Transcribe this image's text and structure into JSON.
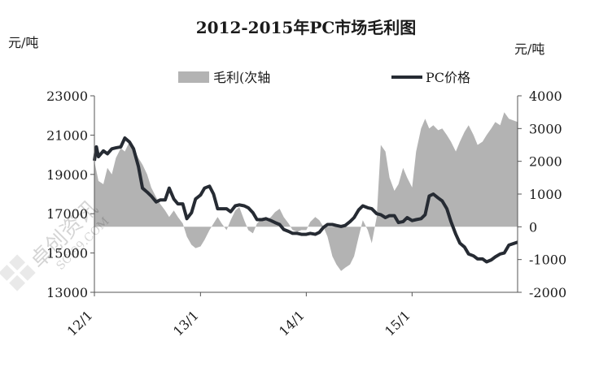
{
  "chart_data": {
    "type": "line",
    "title": "2012-2015年PC市场毛利图",
    "y_left_unit": "元/吨",
    "y_right_unit": "元/吨",
    "y_left_range": [
      13000,
      23000
    ],
    "y_right_range": [
      -2000,
      4000
    ],
    "y_left_ticks": [
      "23000",
      "21000",
      "19000",
      "17000",
      "15000",
      "13000"
    ],
    "y_right_ticks": [
      "4000",
      "3000",
      "2000",
      "1000",
      "0",
      "-1000",
      "-2000"
    ],
    "x_range": [
      "2012-01-01",
      "2015-12-31"
    ],
    "x_tick_labels": [
      {
        "date": "2012-01-01",
        "label": "12/1"
      },
      {
        "date": "2013-01-01",
        "label": "13/1"
      },
      {
        "date": "2014-01-01",
        "label": "14/1"
      },
      {
        "date": "2015-01-01",
        "label": "15/1"
      }
    ],
    "legend": {
      "position": "top",
      "items": [
        {
          "label": "毛利(次轴",
          "kind": "area",
          "color": "#b3b3b3"
        },
        {
          "label": "PC价格",
          "kind": "line",
          "color": "#262b33"
        }
      ]
    },
    "grid": false,
    "series": [
      {
        "name": "毛利(次轴",
        "axis": "right",
        "kind": "area",
        "color": "#b3b3b3",
        "points": [
          [
            "2012-01-01",
            2000
          ],
          [
            "2012-01-15",
            1400
          ],
          [
            "2012-02-01",
            1300
          ],
          [
            "2012-02-15",
            1800
          ],
          [
            "2012-03-01",
            1600
          ],
          [
            "2012-03-15",
            2100
          ],
          [
            "2012-04-01",
            2400
          ],
          [
            "2012-04-15",
            2300
          ],
          [
            "2012-05-01",
            2600
          ],
          [
            "2012-05-15",
            2400
          ],
          [
            "2012-06-01",
            2100
          ],
          [
            "2012-06-15",
            1900
          ],
          [
            "2012-07-01",
            1600
          ],
          [
            "2012-07-15",
            1200
          ],
          [
            "2012-08-01",
            900
          ],
          [
            "2012-08-15",
            700
          ],
          [
            "2012-09-01",
            500
          ],
          [
            "2012-09-15",
            300
          ],
          [
            "2012-10-01",
            500
          ],
          [
            "2012-10-15",
            300
          ],
          [
            "2012-11-01",
            100
          ],
          [
            "2012-11-15",
            -300
          ],
          [
            "2012-12-01",
            -550
          ],
          [
            "2012-12-15",
            -650
          ],
          [
            "2013-01-01",
            -600
          ],
          [
            "2013-01-15",
            -400
          ],
          [
            "2013-02-01",
            -100
          ],
          [
            "2013-02-15",
            100
          ],
          [
            "2013-03-01",
            300
          ],
          [
            "2013-03-15",
            100
          ],
          [
            "2013-04-01",
            -100
          ],
          [
            "2013-04-15",
            200
          ],
          [
            "2013-05-01",
            500
          ],
          [
            "2013-05-15",
            600
          ],
          [
            "2013-06-01",
            200
          ],
          [
            "2013-06-15",
            -100
          ],
          [
            "2013-07-01",
            -200
          ],
          [
            "2013-07-15",
            100
          ],
          [
            "2013-08-01",
            250
          ],
          [
            "2013-08-15",
            200
          ],
          [
            "2013-09-01",
            300
          ],
          [
            "2013-09-15",
            450
          ],
          [
            "2013-10-01",
            550
          ],
          [
            "2013-10-15",
            300
          ],
          [
            "2013-11-01",
            100
          ],
          [
            "2013-11-15",
            -100
          ],
          [
            "2013-12-01",
            -150
          ],
          [
            "2013-12-15",
            -100
          ],
          [
            "2014-01-01",
            -100
          ],
          [
            "2014-01-15",
            150
          ],
          [
            "2014-02-01",
            300
          ],
          [
            "2014-02-15",
            200
          ],
          [
            "2014-03-01",
            0
          ],
          [
            "2014-03-15",
            -300
          ],
          [
            "2014-04-01",
            -900
          ],
          [
            "2014-04-15",
            -1150
          ],
          [
            "2014-05-01",
            -1350
          ],
          [
            "2014-05-15",
            -1250
          ],
          [
            "2014-06-01",
            -1150
          ],
          [
            "2014-06-15",
            -900
          ],
          [
            "2014-07-01",
            -300
          ],
          [
            "2014-07-15",
            200
          ],
          [
            "2014-08-01",
            -100
          ],
          [
            "2014-08-15",
            -500
          ],
          [
            "2014-09-01",
            300
          ],
          [
            "2014-09-15",
            2500
          ],
          [
            "2014-10-01",
            2300
          ],
          [
            "2014-10-15",
            1500
          ],
          [
            "2014-11-01",
            1100
          ],
          [
            "2014-11-15",
            1300
          ],
          [
            "2014-12-01",
            1800
          ],
          [
            "2014-12-15",
            1500
          ],
          [
            "2015-01-01",
            1200
          ],
          [
            "2015-01-15",
            2300
          ],
          [
            "2015-02-01",
            3000
          ],
          [
            "2015-02-15",
            3300
          ],
          [
            "2015-03-01",
            3000
          ],
          [
            "2015-03-15",
            3100
          ],
          [
            "2015-04-01",
            2950
          ],
          [
            "2015-04-15",
            3000
          ],
          [
            "2015-05-01",
            2800
          ],
          [
            "2015-05-15",
            2600
          ],
          [
            "2015-06-01",
            2300
          ],
          [
            "2015-06-15",
            2600
          ],
          [
            "2015-07-01",
            2900
          ],
          [
            "2015-07-15",
            3100
          ],
          [
            "2015-08-01",
            2800
          ],
          [
            "2015-08-15",
            2500
          ],
          [
            "2015-09-01",
            2600
          ],
          [
            "2015-09-15",
            2800
          ],
          [
            "2015-10-01",
            3000
          ],
          [
            "2015-10-15",
            3200
          ],
          [
            "2015-11-01",
            3100
          ],
          [
            "2015-11-15",
            3500
          ],
          [
            "2015-12-01",
            3300
          ],
          [
            "2015-12-31",
            3200
          ]
        ]
      },
      {
        "name": "PC价格",
        "axis": "left",
        "kind": "line",
        "color": "#262b33",
        "points": [
          [
            "2012-01-01",
            19700
          ],
          [
            "2012-01-08",
            20400
          ],
          [
            "2012-01-15",
            19900
          ],
          [
            "2012-02-01",
            20200
          ],
          [
            "2012-02-15",
            20050
          ],
          [
            "2012-03-01",
            20300
          ],
          [
            "2012-03-15",
            20350
          ],
          [
            "2012-04-01",
            20400
          ],
          [
            "2012-04-15",
            20850
          ],
          [
            "2012-05-01",
            20650
          ],
          [
            "2012-05-15",
            20300
          ],
          [
            "2012-06-01",
            19400
          ],
          [
            "2012-06-15",
            18300
          ],
          [
            "2012-07-01",
            18100
          ],
          [
            "2012-07-15",
            17900
          ],
          [
            "2012-08-01",
            17600
          ],
          [
            "2012-08-15",
            17700
          ],
          [
            "2012-09-01",
            17700
          ],
          [
            "2012-09-15",
            18300
          ],
          [
            "2012-10-01",
            17750
          ],
          [
            "2012-10-15",
            17500
          ],
          [
            "2012-11-01",
            17500
          ],
          [
            "2012-11-15",
            16750
          ],
          [
            "2012-12-01",
            17050
          ],
          [
            "2012-12-15",
            17750
          ],
          [
            "2013-01-01",
            17950
          ],
          [
            "2013-01-15",
            18300
          ],
          [
            "2013-02-01",
            18400
          ],
          [
            "2013-02-15",
            18000
          ],
          [
            "2013-03-01",
            17250
          ],
          [
            "2013-03-15",
            17250
          ],
          [
            "2013-04-01",
            17250
          ],
          [
            "2013-04-15",
            17100
          ],
          [
            "2013-05-01",
            17400
          ],
          [
            "2013-05-15",
            17450
          ],
          [
            "2013-06-01",
            17400
          ],
          [
            "2013-06-15",
            17300
          ],
          [
            "2013-07-01",
            17050
          ],
          [
            "2013-07-15",
            16700
          ],
          [
            "2013-08-01",
            16700
          ],
          [
            "2013-08-15",
            16750
          ],
          [
            "2013-09-01",
            16650
          ],
          [
            "2013-09-15",
            16550
          ],
          [
            "2013-10-01",
            16450
          ],
          [
            "2013-10-15",
            16200
          ],
          [
            "2013-11-01",
            16100
          ],
          [
            "2013-11-15",
            16000
          ],
          [
            "2013-12-01",
            16000
          ],
          [
            "2013-12-15",
            15950
          ],
          [
            "2014-01-01",
            15950
          ],
          [
            "2014-01-15",
            16000
          ],
          [
            "2014-02-01",
            15950
          ],
          [
            "2014-02-15",
            16050
          ],
          [
            "2014-03-01",
            16300
          ],
          [
            "2014-03-15",
            16450
          ],
          [
            "2014-04-01",
            16450
          ],
          [
            "2014-04-15",
            16400
          ],
          [
            "2014-05-01",
            16350
          ],
          [
            "2014-05-15",
            16400
          ],
          [
            "2014-06-01",
            16600
          ],
          [
            "2014-06-15",
            16800
          ],
          [
            "2014-07-01",
            17200
          ],
          [
            "2014-07-15",
            17400
          ],
          [
            "2014-08-01",
            17300
          ],
          [
            "2014-08-15",
            17250
          ],
          [
            "2014-09-01",
            17000
          ],
          [
            "2014-09-15",
            16950
          ],
          [
            "2014-10-01",
            16800
          ],
          [
            "2014-10-15",
            16900
          ],
          [
            "2014-11-01",
            16900
          ],
          [
            "2014-11-15",
            16550
          ],
          [
            "2014-12-01",
            16600
          ],
          [
            "2014-12-15",
            16800
          ],
          [
            "2015-01-01",
            16650
          ],
          [
            "2015-01-15",
            16700
          ],
          [
            "2015-02-01",
            16750
          ],
          [
            "2015-02-15",
            16950
          ],
          [
            "2015-03-01",
            17900
          ],
          [
            "2015-03-15",
            18000
          ],
          [
            "2015-04-01",
            17800
          ],
          [
            "2015-04-15",
            17650
          ],
          [
            "2015-05-01",
            17250
          ],
          [
            "2015-05-15",
            16600
          ],
          [
            "2015-06-01",
            15950
          ],
          [
            "2015-06-15",
            15500
          ],
          [
            "2015-07-01",
            15300
          ],
          [
            "2015-07-15",
            14950
          ],
          [
            "2015-08-01",
            14850
          ],
          [
            "2015-08-15",
            14700
          ],
          [
            "2015-09-01",
            14700
          ],
          [
            "2015-09-15",
            14550
          ],
          [
            "2015-10-01",
            14650
          ],
          [
            "2015-10-15",
            14800
          ],
          [
            "2015-11-01",
            14950
          ],
          [
            "2015-11-15",
            15000
          ],
          [
            "2015-12-01",
            15400
          ],
          [
            "2015-12-31",
            15550
          ]
        ]
      }
    ]
  }
}
